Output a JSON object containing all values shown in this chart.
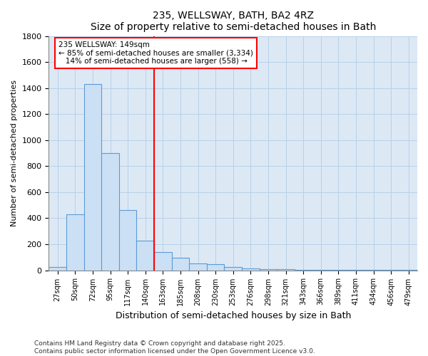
{
  "title": "235, WELLSWAY, BATH, BA2 4RZ",
  "subtitle": "Size of property relative to semi-detached houses in Bath",
  "xlabel": "Distribution of semi-detached houses by size in Bath",
  "ylabel": "Number of semi-detached properties",
  "categories": [
    "27sqm",
    "50sqm",
    "72sqm",
    "95sqm",
    "117sqm",
    "140sqm",
    "163sqm",
    "185sqm",
    "208sqm",
    "230sqm",
    "253sqm",
    "276sqm",
    "298sqm",
    "321sqm",
    "343sqm",
    "366sqm",
    "389sqm",
    "411sqm",
    "434sqm",
    "456sqm",
    "479sqm"
  ],
  "values": [
    25,
    430,
    1430,
    900,
    465,
    225,
    140,
    95,
    55,
    45,
    25,
    15,
    10,
    7,
    5,
    4,
    3,
    2,
    1,
    1,
    1
  ],
  "bar_color": "#cce0f5",
  "bar_edge_color": "#5b9bd5",
  "red_line_x": 5.5,
  "annotation_title": "235 WELLSWAY: 149sqm",
  "annotation_line1": "← 85% of semi-detached houses are smaller (3,334)",
  "annotation_line2": "   14% of semi-detached houses are larger (558) →",
  "ylim": [
    0,
    1800
  ],
  "yticks": [
    0,
    200,
    400,
    600,
    800,
    1000,
    1200,
    1400,
    1600,
    1800
  ],
  "footer_line1": "Contains HM Land Registry data © Crown copyright and database right 2025.",
  "footer_line2": "Contains public sector information licensed under the Open Government Licence v3.0.",
  "bg_color": "#ffffff",
  "plot_bg_color": "#dce9f5",
  "grid_color": "#b8d0e8"
}
